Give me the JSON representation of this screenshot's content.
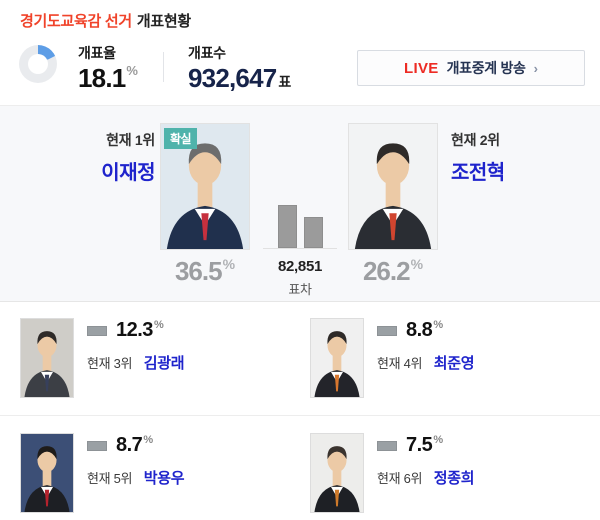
{
  "page_title": {
    "election": "경기도교육감 선거",
    "suffix": "개표현황"
  },
  "header": {
    "stats": {
      "counted_rate_label": "개표율",
      "counted_pct": "18.1",
      "pct_unit": "%",
      "counted_votes_label": "개표수",
      "counted_votes": "932,647",
      "votes_unit": "표"
    },
    "live_button": {
      "live": "LIVE",
      "label": "개표중계 방송",
      "chevron": "›"
    }
  },
  "leaders": {
    "gap_votes": "82,851",
    "gap_label": "표차"
  },
  "candidates": [
    {
      "rank_label": "현재 1위",
      "name": "이재정",
      "pct": "36.5",
      "badge": "확실",
      "photo": {
        "bg": "#dfe8ef",
        "suit": "#20304d",
        "tie": "#c6303e",
        "hair": "#6d6d6d"
      }
    },
    {
      "rank_label": "현재 2위",
      "name": "조전혁",
      "pct": "26.2",
      "photo": {
        "bg": "#f2f3f4",
        "suit": "#2a2d33",
        "tie": "#d0452f",
        "hair": "#2e2a28"
      }
    },
    {
      "rank_label": "현재 3위",
      "name": "김광래",
      "pct": "12.3",
      "photo": {
        "bg": "#cfcdc8",
        "suit": "#3c3f45",
        "tie": "#37405c",
        "hair": "#2e2a28"
      }
    },
    {
      "rank_label": "현재 4위",
      "name": "최준영",
      "pct": "8.8",
      "photo": {
        "bg": "#f0f0f0",
        "suit": "#23242a",
        "tie": "#d8772e",
        "hair": "#2e2a28"
      }
    },
    {
      "rank_label": "현재 5위",
      "name": "박용우",
      "pct": "8.7",
      "photo": {
        "bg": "#3c4f76",
        "suit": "#1d1f24",
        "tie": "#b5222d",
        "hair": "#1f1c1a"
      }
    },
    {
      "rank_label": "현재 6위",
      "name": "정종희",
      "pct": "7.5",
      "photo": {
        "bg": "#ededeb",
        "suit": "#1e2025",
        "tie": "#cf7a2a",
        "hair": "#3a332e"
      }
    }
  ],
  "colors": {
    "accent_red": "#f0432a",
    "live_red": "#ed2b24",
    "name_blue": "#1f24cc",
    "badge_teal": "#4fb3ab",
    "donut_fill": "#5d9de6",
    "donut_track": "#e9ebee",
    "bar_gray": "#9b9b9b"
  }
}
